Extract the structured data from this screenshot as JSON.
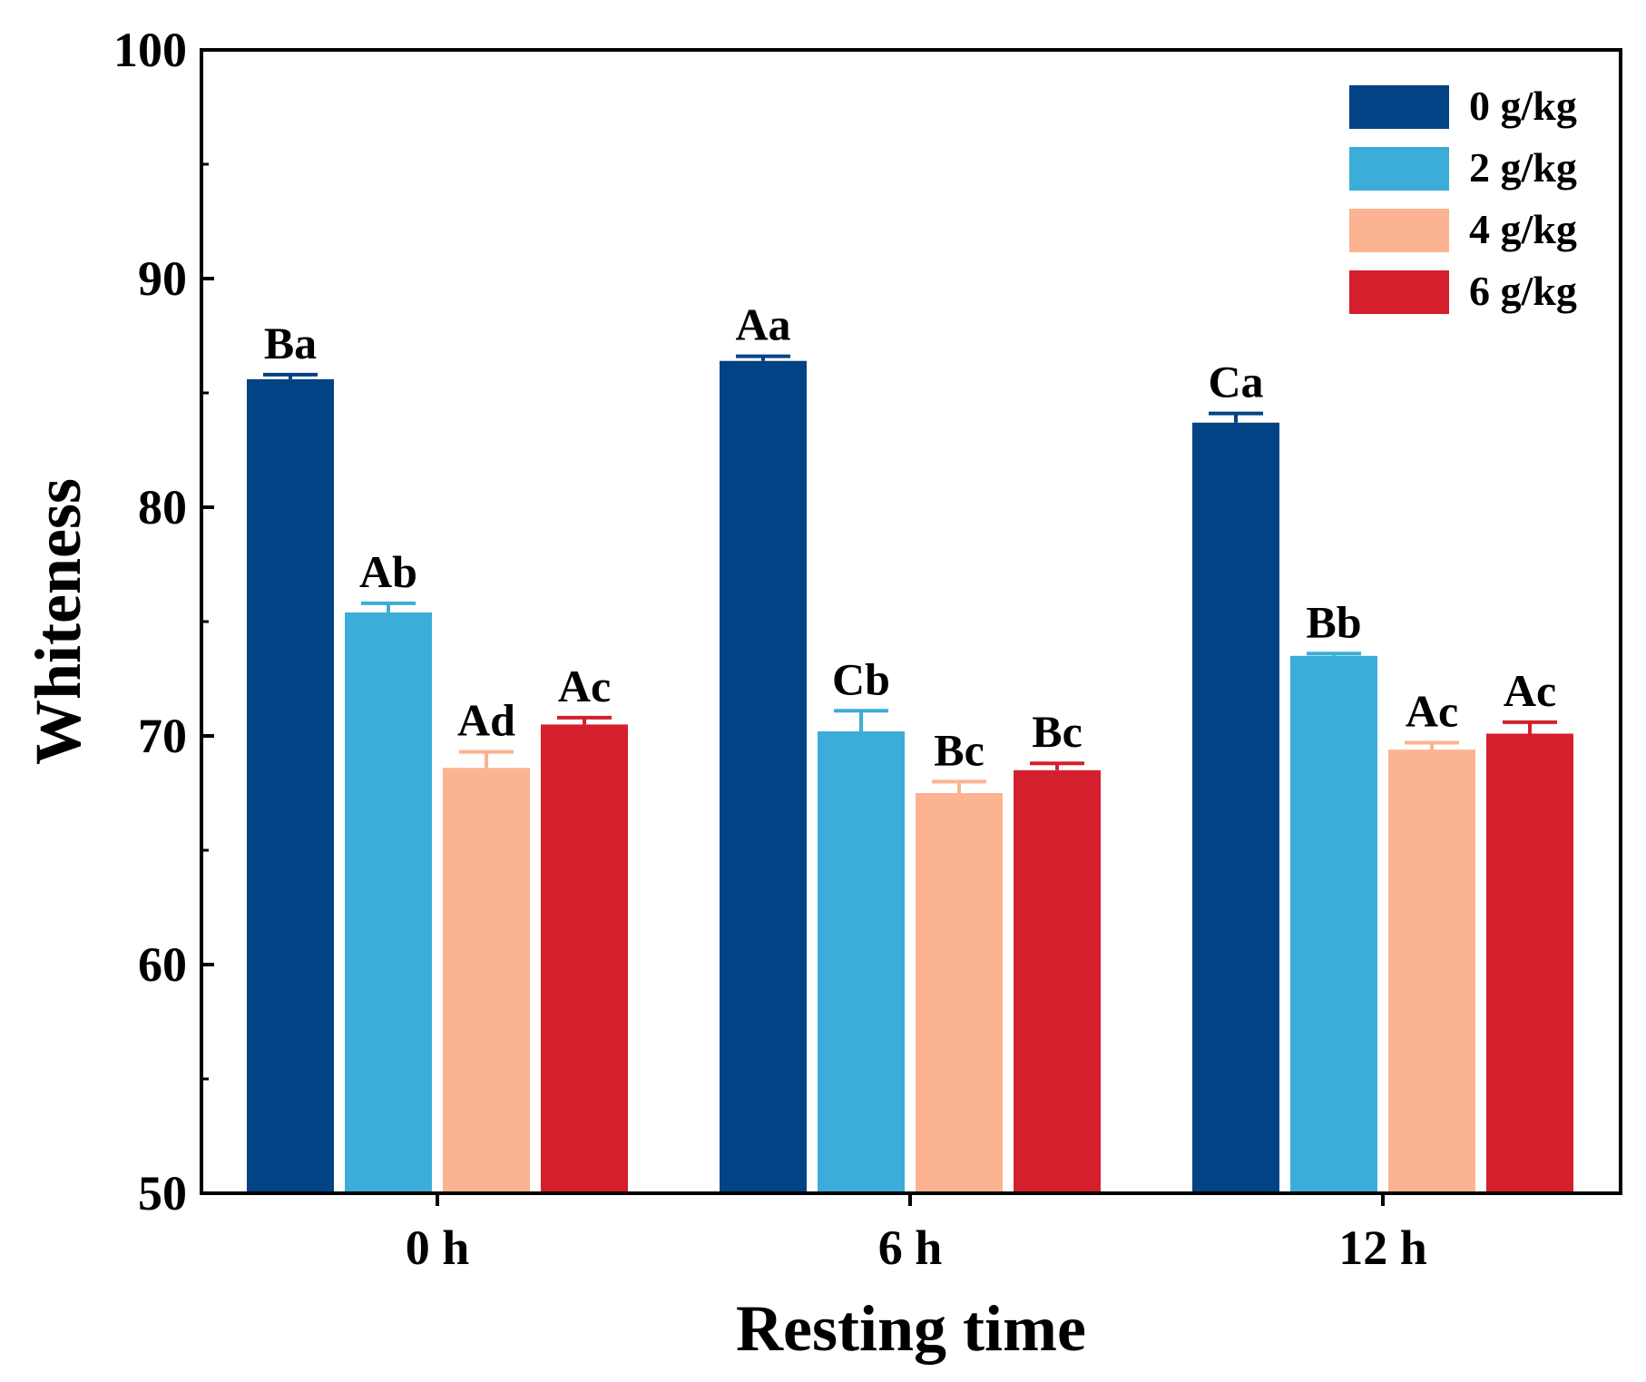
{
  "chart_data": {
    "type": "bar",
    "title": "",
    "xlabel": "Resting time",
    "ylabel": "Whiteness",
    "categories": [
      "0 h",
      "6 h",
      "12 h"
    ],
    "ylim": [
      50,
      100
    ],
    "yticks": [
      "50",
      "60",
      "70",
      "80",
      "90",
      "100"
    ],
    "grid": false,
    "legend_position": "top-right",
    "series": [
      {
        "name": "0 g/kg",
        "color": "#024385",
        "values": [
          85.6,
          86.4,
          83.7
        ],
        "errors": [
          0.2,
          0.2,
          0.4
        ],
        "labels": [
          "Ba",
          "Aa",
          "Ca"
        ]
      },
      {
        "name": "2 g/kg",
        "color": "#3badd8",
        "values": [
          75.4,
          70.2,
          73.5
        ],
        "errors": [
          0.4,
          0.9,
          0.1
        ],
        "labels": [
          "Ab",
          "Cb",
          "Bb"
        ]
      },
      {
        "name": "4 g/kg",
        "color": "#fbb391",
        "values": [
          68.6,
          67.5,
          69.4
        ],
        "errors": [
          0.7,
          0.5,
          0.3
        ],
        "labels": [
          "Ad",
          "Bc",
          "Ac"
        ]
      },
      {
        "name": "6 g/kg",
        "color": "#d41f2c",
        "values": [
          70.5,
          68.5,
          70.1
        ],
        "errors": [
          0.3,
          0.3,
          0.5
        ],
        "labels": [
          "Ac",
          "Bc",
          "Ac"
        ]
      }
    ]
  }
}
